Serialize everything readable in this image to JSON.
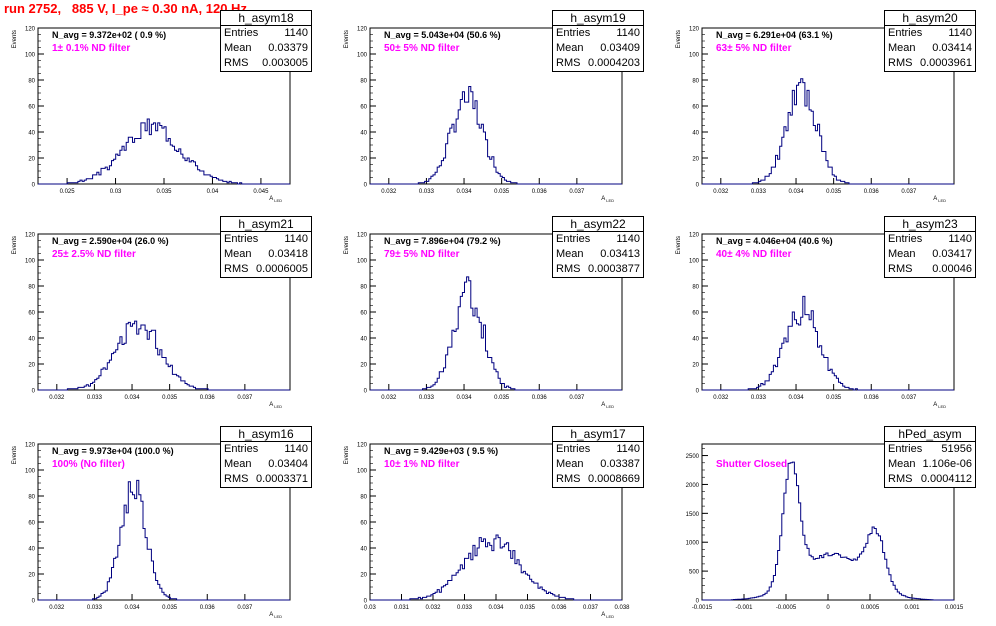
{
  "page": {
    "title": "run 2752,   885 V, I_pe ≈ 0.30 nA, 120 Hz"
  },
  "colors": {
    "hist_line": "#000080",
    "title_red": "#ff0000",
    "filter_magenta": "#ff00ff"
  },
  "chart_data": [
    {
      "type": "histogram",
      "name": "h_asym18",
      "navg": "N_avg = 9.372e+02 ( 0.9 %)",
      "filter": "1± 0.1% ND filter",
      "stats": {
        "entries": "1140",
        "mean": "0.03379",
        "rms": "0.003005"
      },
      "xlim": [
        0.022,
        0.048
      ],
      "ylim": [
        0,
        120
      ],
      "xticks": [
        "0.025",
        "0.03",
        "0.035",
        "0.04",
        "0.045"
      ],
      "xtick_values": [
        0.025,
        0.03,
        0.035,
        0.04,
        0.045
      ],
      "yticks": [
        0,
        20,
        40,
        60,
        80,
        100,
        120
      ],
      "xlabel": "A_LED",
      "ylabel": "Events",
      "mean": 0.0338,
      "sigma": 0.003,
      "peak": 44,
      "grain": 0.08,
      "seed": 3
    },
    {
      "type": "histogram",
      "name": "h_asym19",
      "navg": "N_avg = 5.043e+04 (50.6 %)",
      "filter": "50± 5% ND filter",
      "stats": {
        "entries": "1140",
        "mean": "0.03409",
        "rms": "0.0004203"
      },
      "xlim": [
        0.0315,
        0.0382
      ],
      "ylim": [
        0,
        120
      ],
      "xticks": [
        "0.032",
        "0.033",
        "0.034",
        "0.035",
        "0.036",
        "0.037"
      ],
      "xtick_values": [
        0.032,
        0.033,
        0.034,
        0.035,
        0.036,
        0.037
      ],
      "yticks": [
        0,
        20,
        40,
        60,
        80,
        100,
        120
      ],
      "xlabel": "A_LED",
      "ylabel": "Events",
      "mean": 0.03409,
      "sigma": 0.00042,
      "peak": 66,
      "grain": 0.08,
      "seed": 7
    },
    {
      "type": "histogram",
      "name": "h_asym20",
      "navg": "N_avg = 6.291e+04 (63.1 %)",
      "filter": "63± 5% ND filter",
      "stats": {
        "entries": "1140",
        "mean": "0.03414",
        "rms": "0.0003961"
      },
      "xlim": [
        0.0315,
        0.0382
      ],
      "ylim": [
        0,
        120
      ],
      "xticks": [
        "0.032",
        "0.033",
        "0.034",
        "0.035",
        "0.036",
        "0.037"
      ],
      "xtick_values": [
        0.032,
        0.033,
        0.034,
        0.035,
        0.036,
        0.037
      ],
      "yticks": [
        0,
        20,
        40,
        60,
        80,
        100,
        120
      ],
      "xlabel": "A_LED",
      "ylabel": "Events",
      "mean": 0.03414,
      "sigma": 0.0004,
      "peak": 75,
      "grain": 0.09,
      "seed": 11
    },
    {
      "type": "histogram",
      "name": "h_asym21",
      "navg": "N_avg = 2.590e+04 (26.0 %)",
      "filter": "25± 2.5% ND filter",
      "stats": {
        "entries": "1140",
        "mean": "0.03418",
        "rms": "0.0006005"
      },
      "xlim": [
        0.0315,
        0.0382
      ],
      "ylim": [
        0,
        120
      ],
      "xticks": [
        "0.032",
        "0.033",
        "0.034",
        "0.035",
        "0.036",
        "0.037"
      ],
      "xtick_values": [
        0.032,
        0.033,
        0.034,
        0.035,
        0.036,
        0.037
      ],
      "yticks": [
        0,
        20,
        40,
        60,
        80,
        100,
        120
      ],
      "xlabel": "A_LED",
      "ylabel": "Events",
      "mean": 0.03418,
      "sigma": 0.0006,
      "peak": 50,
      "grain": 0.09,
      "seed": 13
    },
    {
      "type": "histogram",
      "name": "h_asym22",
      "navg": "N_avg = 7.896e+04 (79.2 %)",
      "filter": "79± 5% ND filter",
      "stats": {
        "entries": "1140",
        "mean": "0.03413",
        "rms": "0.0003877"
      },
      "xlim": [
        0.0315,
        0.0382
      ],
      "ylim": [
        0,
        120
      ],
      "xticks": [
        "0.032",
        "0.033",
        "0.034",
        "0.035",
        "0.036",
        "0.037"
      ],
      "xtick_values": [
        0.032,
        0.033,
        0.034,
        0.035,
        0.036,
        0.037
      ],
      "yticks": [
        0,
        20,
        40,
        60,
        80,
        100,
        120
      ],
      "xlabel": "A_LED",
      "ylabel": "Events",
      "mean": 0.03413,
      "sigma": 0.00039,
      "peak": 75,
      "grain": 0.09,
      "seed": 17
    },
    {
      "type": "histogram",
      "name": "h_asym23",
      "navg": "N_avg = 4.046e+04 (40.6 %)",
      "filter": "40± 4% ND filter",
      "stats": {
        "entries": "1140",
        "mean": "0.03417",
        "rms": "0.00046"
      },
      "xlim": [
        0.0315,
        0.0382
      ],
      "ylim": [
        0,
        120
      ],
      "xticks": [
        "0.032",
        "0.033",
        "0.034",
        "0.035",
        "0.036",
        "0.037"
      ],
      "xtick_values": [
        0.032,
        0.033,
        0.034,
        0.035,
        0.036,
        0.037
      ],
      "yticks": [
        0,
        20,
        40,
        60,
        80,
        100,
        120
      ],
      "xlabel": "A_LED",
      "ylabel": "Events",
      "mean": 0.03417,
      "sigma": 0.00046,
      "peak": 62,
      "grain": 0.09,
      "seed": 19
    },
    {
      "type": "histogram",
      "name": "h_asym16",
      "navg": "N_avg = 9.973e+04 (100.0 %)",
      "filter": "100% (No filter)",
      "stats": {
        "entries": "1140",
        "mean": "0.03404",
        "rms": "0.0003371"
      },
      "xlim": [
        0.0315,
        0.0382
      ],
      "ylim": [
        0,
        120
      ],
      "xticks": [
        "0.032",
        "0.033",
        "0.034",
        "0.035",
        "0.036",
        "0.037"
      ],
      "xtick_values": [
        0.032,
        0.033,
        0.034,
        0.035,
        0.036,
        0.037
      ],
      "yticks": [
        0,
        20,
        40,
        60,
        80,
        100,
        120
      ],
      "xlabel": "A_LED",
      "ylabel": "Events",
      "mean": 0.03404,
      "sigma": 0.00034,
      "peak": 85,
      "grain": 0.08,
      "seed": 23
    },
    {
      "type": "histogram",
      "name": "h_asym17",
      "navg": "N_avg = 9.429e+03 ( 9.5 %)",
      "filter": "10± 1% ND filter",
      "stats": {
        "entries": "1140",
        "mean": "0.03387",
        "rms": "0.0008669"
      },
      "xlim": [
        0.03,
        0.038
      ],
      "ylim": [
        0,
        120
      ],
      "xticks": [
        "0.03",
        "0.031",
        "0.032",
        "0.033",
        "0.034",
        "0.035",
        "0.036",
        "0.037",
        "0.038"
      ],
      "xtick_values": [
        0.03,
        0.031,
        0.032,
        0.033,
        0.034,
        0.035,
        0.036,
        0.037,
        0.038
      ],
      "yticks": [
        0,
        20,
        40,
        60,
        80,
        100,
        120
      ],
      "xlabel": "A_LED",
      "ylabel": "Events",
      "mean": 0.03387,
      "sigma": 0.00087,
      "peak": 45,
      "grain": 0.08,
      "seed": 29
    },
    {
      "type": "histogram",
      "name": "hPed_asym",
      "navg": "",
      "filter": "Shutter Closed",
      "stats": {
        "entries": "51956",
        "mean": "1.106e-06",
        "rms": "0.0004112"
      },
      "xlim": [
        -0.0015,
        0.0015
      ],
      "ylim": [
        0,
        2700
      ],
      "xticks": [
        "-0.0015",
        "-0.001",
        "-0.0005",
        "0",
        "0.0005",
        "0.001",
        "0.0015"
      ],
      "xtick_values": [
        -0.0015,
        -0.001,
        -0.0005,
        0,
        0.0005,
        0.001,
        0.0015
      ],
      "yticks": [
        0,
        500,
        1000,
        1500,
        2000,
        2500
      ],
      "xlabel": "",
      "ylabel": "",
      "components": [
        {
          "mean": -0.00044,
          "sigma": 0.0001,
          "amp": 2000
        },
        {
          "mean": 0.00057,
          "sigma": 0.00011,
          "amp": 900
        },
        {
          "mean": 5e-05,
          "sigma": 0.00038,
          "amp": 800
        }
      ],
      "grain": 0.02,
      "seed": 31
    }
  ]
}
